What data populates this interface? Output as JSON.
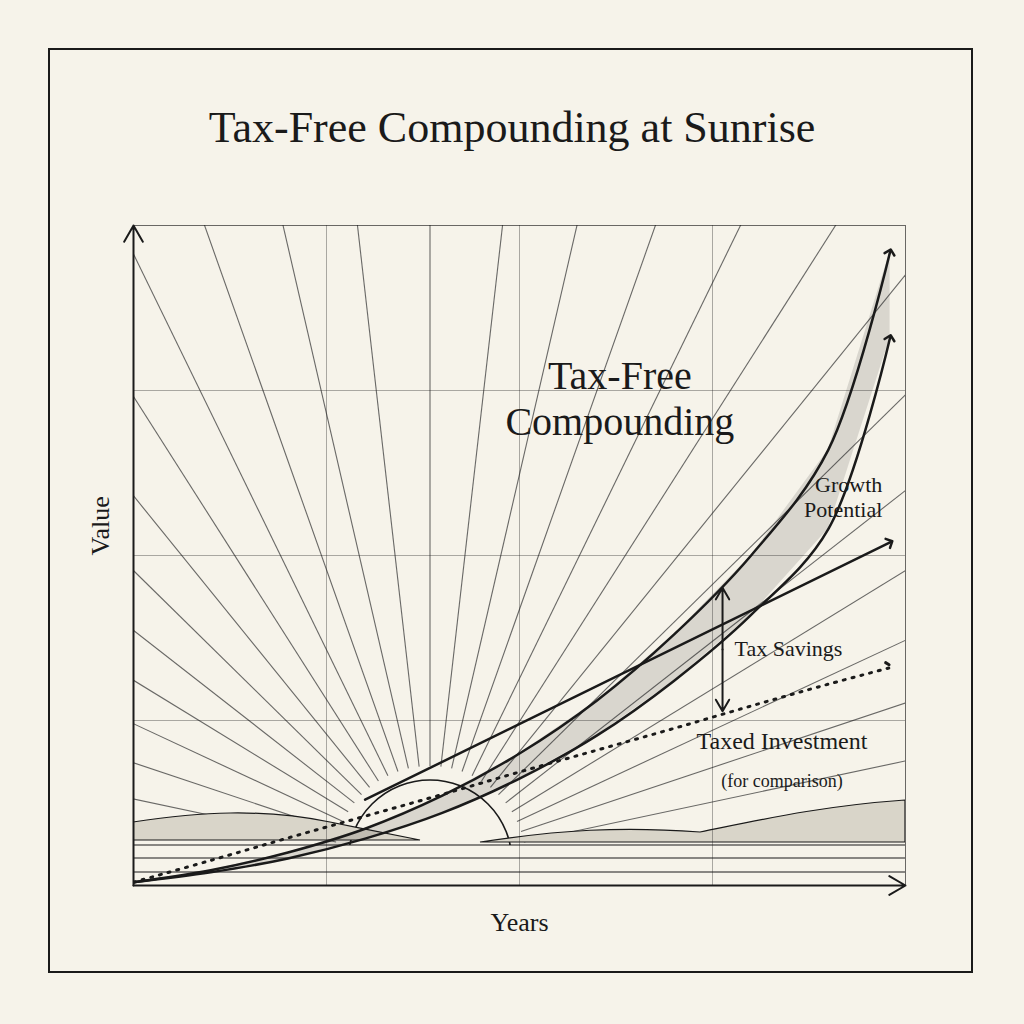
{
  "chart_data": {
    "type": "line",
    "title": "Tax-Free Compounding at Sunrise",
    "x_label": "Years",
    "y_label": "Value",
    "x": [
      0,
      1,
      2,
      3,
      4,
      5,
      6,
      7,
      8,
      9,
      9.8
    ],
    "xlim": [
      0,
      10
    ],
    "ylim": [
      0,
      10
    ],
    "xticks": [
      0,
      2.5,
      5,
      7.5,
      10
    ],
    "yticks": [
      0,
      2.5,
      5,
      7.5,
      10
    ],
    "grid": true,
    "tick_labels": false,
    "series": [
      {
        "color": "#1a1a1a",
        "line_style": "solid",
        "marker": "arrow",
        "values": [
          0.05,
          0.23,
          0.5,
          0.86,
          1.36,
          2.0,
          2.8,
          3.8,
          5.0,
          6.6,
          9.6
        ]
      },
      {
        "color": "#1a1a1a",
        "line_style": "solid",
        "marker": "arrow",
        "values": [
          0.05,
          0.2,
          0.41,
          0.71,
          1.1,
          1.62,
          2.27,
          3.1,
          4.1,
          5.4,
          8.3
        ]
      },
      {
        "color": "#1a1a1a",
        "line_style": "solid",
        "marker": "arrow",
        "x": [
          3,
          9.8
        ],
        "values": [
          1.3,
          5.2
        ]
      },
      {
        "color": "#1a1a1a",
        "line_style": "dotted",
        "marker": "arrow",
        "values": [
          0.05,
          0.38,
          0.72,
          1.05,
          1.38,
          1.72,
          2.05,
          2.38,
          2.72,
          3.05,
          3.3
        ]
      }
    ],
    "annotations": [
      {
        "text": "Tax-Free Compounding",
        "x": 6.3,
        "y": 7.4
      },
      {
        "text": "Growth Potential",
        "x": 9.7,
        "y": 5.9
      },
      {
        "text": "Tax Savings",
        "x": 7.63,
        "y": 3.6
      },
      {
        "text": "Taxed Investment",
        "x": 8.4,
        "y": 2.2
      },
      {
        "text": "(for comparison)",
        "x": 8.4,
        "y": 1.6
      }
    ]
  }
}
